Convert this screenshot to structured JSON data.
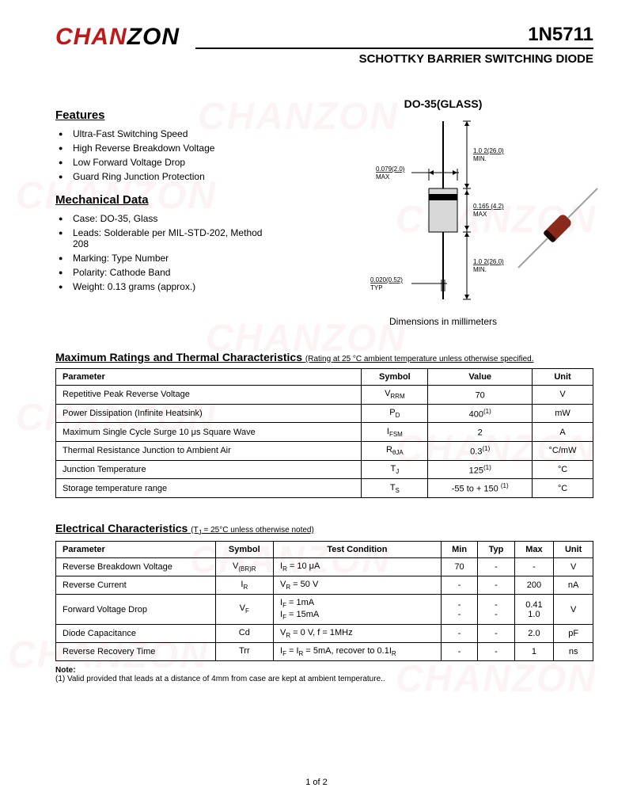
{
  "logo": {
    "part1": "CHAN",
    "part2": "ZON"
  },
  "header": {
    "part_number": "1N5711",
    "subtitle": "SCHOTTKY BARRIER SWITCHING DIODE"
  },
  "features": {
    "title": "Features",
    "items": [
      "Ultra-Fast Switching Speed",
      "High Reverse Breakdown Voltage",
      "Low Forward Voltage Drop",
      "Guard Ring Junction Protection"
    ]
  },
  "mechanical": {
    "title": "Mechanical Data",
    "items": [
      "Case: DO-35, Glass",
      "Leads: Solderable per MIL-STD-202, Method 208",
      "Marking: Type Number",
      "Polarity: Cathode Band",
      "Weight: 0.13 grams (approx.)"
    ]
  },
  "package": {
    "label": "DO-35(GLASS)",
    "dims_note": "Dimensions in millimeters",
    "dims": {
      "lead_dia": "0.020(0.52) TYP",
      "body_dia": "0.079(2.0) MAX",
      "lead_len_top": "1.0 2(26.0) MIN.",
      "body_len": "0.165 (4.2) MAX",
      "lead_len_bot": "1.0 2(26.0) MIN."
    },
    "colors": {
      "body_fill": "#d8d8d8",
      "band": "#000000",
      "photo_body": "#8b2a1a",
      "photo_band": "#1a0a05",
      "lead": "#a0a0a0"
    }
  },
  "max_ratings": {
    "title": "Maximum Ratings and Thermal Characteristics",
    "subtitle": "(Rating at  25 °C ambient temperature unless otherwise specified.",
    "headers": [
      "Parameter",
      "Symbol",
      "Value",
      "Unit"
    ],
    "rows": [
      {
        "param": "Repetitive Peak Reverse Voltage",
        "sym": "V",
        "sub": "RRM",
        "val": "70",
        "sup": "",
        "unit": "V"
      },
      {
        "param": "Power Dissipation (Infinite Heatsink)",
        "sym": "P",
        "sub": "D",
        "val": "400",
        "sup": "(1)",
        "unit": "mW"
      },
      {
        "param": "Maximum Single Cycle Surge 10 μs Square Wave",
        "sym": "I",
        "sub": "FSM",
        "val": "2",
        "sup": "",
        "unit": "A"
      },
      {
        "param": "Thermal Resistance Junction to Ambient Air",
        "sym": "R",
        "sub": "θJA",
        "val": "0.3",
        "sup": "(1)",
        "unit": "°C/mW"
      },
      {
        "param": "Junction Temperature",
        "sym": "T",
        "sub": "J",
        "val": "125",
        "sup": "(1)",
        "unit": "°C"
      },
      {
        "param": "Storage temperature range",
        "sym": "T",
        "sub": "S",
        "val": "-55 to + 150 ",
        "sup": "(1)",
        "unit": "°C"
      }
    ]
  },
  "elec": {
    "title": "Electrical Characteristics",
    "subtitle": "(TJ = 25°C unless otherwise noted)",
    "headers": [
      "Parameter",
      "Symbol",
      "Test Condition",
      "Min",
      "Typ",
      "Max",
      "Unit"
    ],
    "rows": [
      {
        "param": "Reverse Breakdown Voltage",
        "sym": "V",
        "sub": "(BR)R",
        "cond": "IR = 10 μA",
        "min": "70",
        "typ": "-",
        "max": "-",
        "unit": "V"
      },
      {
        "param": "Reverse Current",
        "sym": "I",
        "sub": "R",
        "cond": "VR = 50 V",
        "min": "-",
        "typ": "-",
        "max": "200",
        "unit": "nA"
      },
      {
        "param": "Forward Voltage Drop",
        "sym": "V",
        "sub": "F",
        "cond": "IF = 1mA\nIF = 15mA",
        "min": "-\n-",
        "typ": "-\n-",
        "max": "0.41\n1.0",
        "unit": "V"
      },
      {
        "param": "Diode Capacitance",
        "sym": "Cd",
        "sub": "",
        "cond": "VR = 0 V, f = 1MHz",
        "min": "-",
        "typ": "-",
        "max": "2.0",
        "unit": "pF"
      },
      {
        "param": "Reverse Recovery Time",
        "sym": "Trr",
        "sub": "",
        "cond": "IF = IR = 5mA, recover to 0.1IR",
        "min": "-",
        "typ": "-",
        "max": "1",
        "unit": "ns"
      }
    ]
  },
  "note": {
    "label": "Note:",
    "text": "(1) Valid provided that leads at a distance of 4mm from case are kept at ambient temperature.."
  },
  "page": "1 of 2",
  "watermark_text": "CHANZON"
}
